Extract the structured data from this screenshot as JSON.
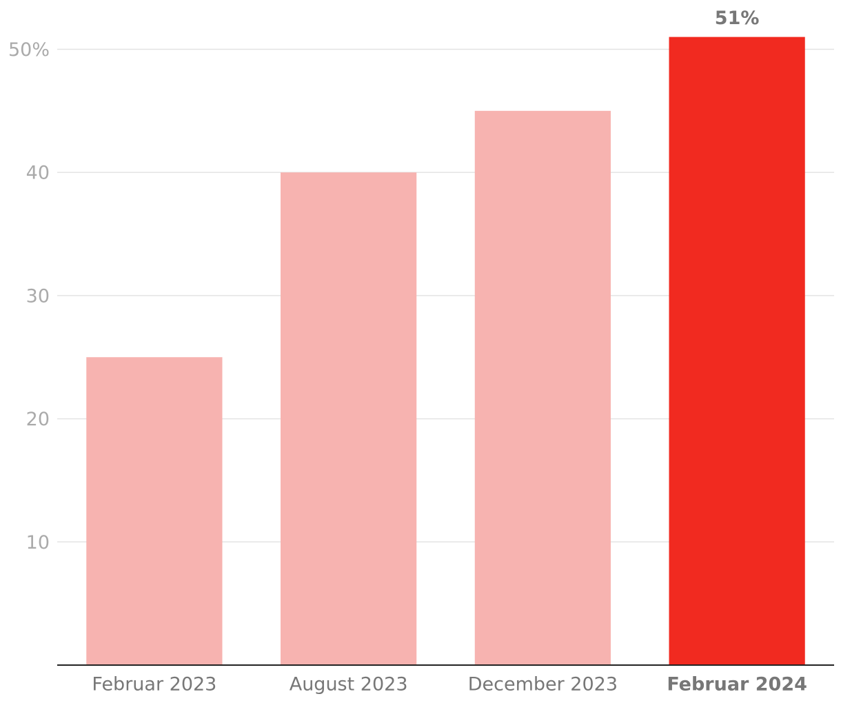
{
  "chart_data": {
    "type": "bar",
    "categories": [
      "Februar 2023",
      "August 2023",
      "December 2023",
      "Februar 2024"
    ],
    "values": [
      25,
      40,
      45,
      51
    ],
    "value_labels": [
      null,
      null,
      null,
      "51%"
    ],
    "colors": [
      "#f7b3b0",
      "#f7b3b0",
      "#f7b3b0",
      "#f12a20"
    ],
    "ylim": [
      0,
      54
    ],
    "yticks": [
      10,
      20,
      30,
      40,
      {
        "value": 50,
        "label": "50%"
      }
    ],
    "grid": true
  }
}
